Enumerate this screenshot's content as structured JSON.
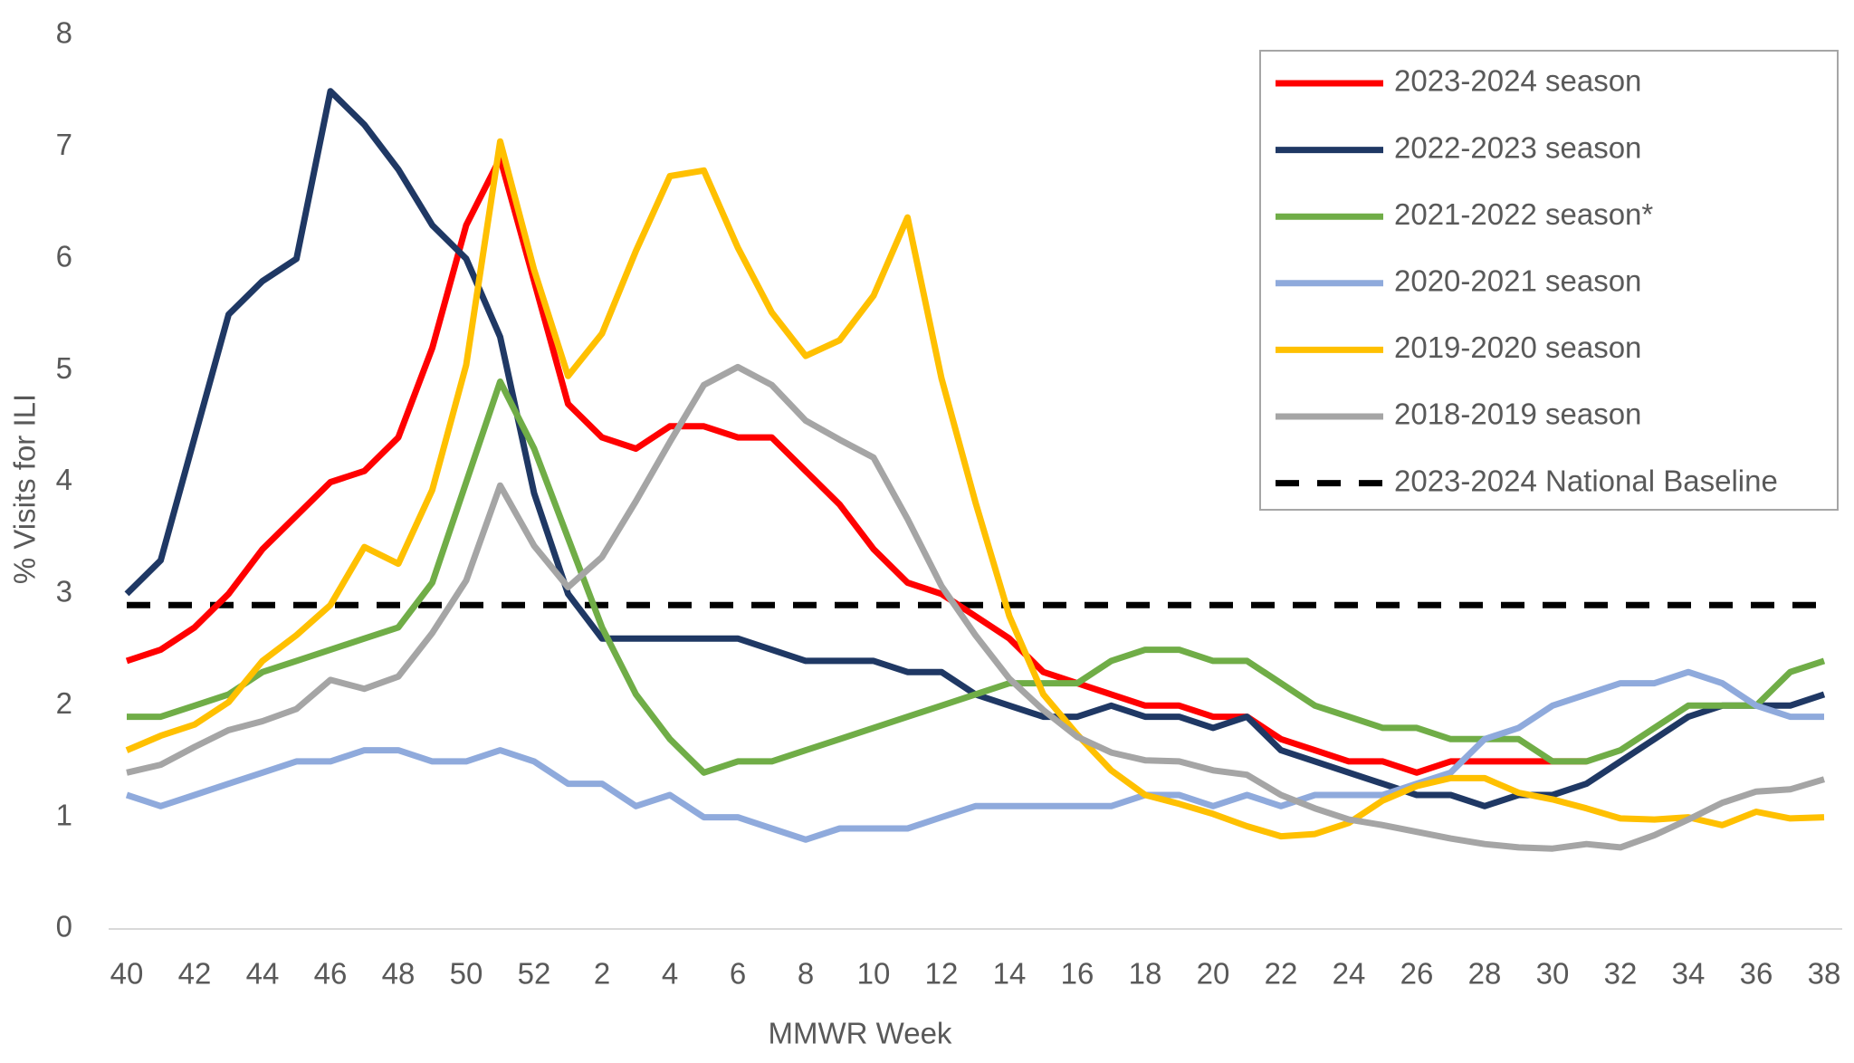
{
  "chart_data": {
    "type": "line",
    "x_label": "MMWR Week",
    "y_label": "% Visits for ILI",
    "categories": [
      40,
      null,
      42,
      null,
      44,
      null,
      46,
      null,
      48,
      null,
      50,
      null,
      52,
      null,
      2,
      null,
      4,
      null,
      6,
      null,
      8,
      null,
      10,
      null,
      12,
      null,
      14,
      null,
      16,
      null,
      18,
      null,
      20,
      null,
      22,
      null,
      24,
      null,
      26,
      null,
      28,
      null,
      30,
      null,
      32,
      null,
      34,
      null,
      36,
      null,
      38
    ],
    "ylim": [
      0,
      8
    ],
    "yticks": [
      0,
      1,
      2,
      3,
      4,
      5,
      6,
      7,
      8
    ],
    "grid": false,
    "legend": "upper right",
    "series": [
      {
        "name": "2023-2024 season",
        "color": "#ff0000",
        "values": [
          2.4,
          2.5,
          2.7,
          3.0,
          3.4,
          3.7,
          4.0,
          4.1,
          4.4,
          5.2,
          6.3,
          6.9,
          5.8,
          4.7,
          4.4,
          4.3,
          4.5,
          4.5,
          4.4,
          4.4,
          4.1,
          3.8,
          3.4,
          3.1,
          3.0,
          2.8,
          2.6,
          2.3,
          2.2,
          2.1,
          2.0,
          2.0,
          1.9,
          1.9,
          1.7,
          1.6,
          1.5,
          1.5,
          1.4,
          1.5,
          1.5,
          1.5,
          1.5,
          1.5,
          null,
          null,
          null,
          null,
          null,
          null,
          null
        ]
      },
      {
        "name": "2022-2023 season",
        "color": "#1f3864",
        "values": [
          3.0,
          3.3,
          4.4,
          5.5,
          5.8,
          6.0,
          7.5,
          7.2,
          6.8,
          6.3,
          6.0,
          5.3,
          3.9,
          3.0,
          2.6,
          2.6,
          2.6,
          2.6,
          2.6,
          2.5,
          2.4,
          2.4,
          2.4,
          2.3,
          2.3,
          2.1,
          2.0,
          1.9,
          1.9,
          2.0,
          1.9,
          1.9,
          1.8,
          1.9,
          1.6,
          1.5,
          1.4,
          1.3,
          1.2,
          1.2,
          1.1,
          1.2,
          1.2,
          1.3,
          1.5,
          1.7,
          1.9,
          2.0,
          2.0,
          2.0,
          2.1
        ]
      },
      {
        "name": "2021-2022 season*",
        "color": "#70ad47",
        "values": [
          1.9,
          1.9,
          2.0,
          2.1,
          2.3,
          2.4,
          2.5,
          2.6,
          2.7,
          3.1,
          4.0,
          4.9,
          4.3,
          3.5,
          2.7,
          2.1,
          1.7,
          1.4,
          1.5,
          1.5,
          1.6,
          1.7,
          1.8,
          1.9,
          2.0,
          2.1,
          2.2,
          2.2,
          2.2,
          2.4,
          2.5,
          2.5,
          2.4,
          2.4,
          2.2,
          2.0,
          1.9,
          1.8,
          1.8,
          1.7,
          1.7,
          1.7,
          1.5,
          1.5,
          1.6,
          1.8,
          2.0,
          2.0,
          2.0,
          2.3,
          2.4
        ]
      },
      {
        "name": "2020-2021 season",
        "color": "#8faadc",
        "values": [
          1.2,
          1.1,
          1.2,
          1.3,
          1.4,
          1.5,
          1.5,
          1.6,
          1.6,
          1.5,
          1.5,
          1.6,
          1.5,
          1.3,
          1.3,
          1.1,
          1.2,
          1.0,
          1.0,
          0.9,
          0.8,
          0.9,
          0.9,
          0.9,
          1.0,
          1.1,
          1.1,
          1.1,
          1.1,
          1.1,
          1.2,
          1.2,
          1.1,
          1.2,
          1.1,
          1.2,
          1.2,
          1.2,
          1.3,
          1.4,
          1.7,
          1.8,
          2.0,
          2.1,
          2.2,
          2.2,
          2.3,
          2.2,
          2.0,
          1.9,
          1.9
        ]
      },
      {
        "name": "2019-2020 season",
        "color": "#ffc000",
        "values": [
          1.6,
          1.73,
          1.83,
          2.03,
          2.4,
          2.63,
          2.9,
          3.42,
          3.27,
          3.93,
          5.05,
          7.05,
          5.9,
          4.95,
          5.33,
          6.07,
          6.74,
          6.79,
          6.1,
          5.52,
          5.13,
          5.27,
          5.67,
          6.37,
          4.93,
          3.82,
          2.8,
          2.1,
          1.74,
          1.42,
          1.2,
          1.12,
          1.03,
          0.92,
          0.83,
          0.85,
          0.95,
          1.15,
          1.28,
          1.35,
          1.35,
          1.22,
          1.16,
          1.08,
          0.99,
          0.98,
          1.0,
          0.93,
          1.05,
          0.99,
          1.0
        ]
      },
      {
        "name": "2018-2019 season",
        "color": "#a5a5a5",
        "values": [
          1.4,
          1.47,
          1.63,
          1.78,
          1.86,
          1.97,
          2.23,
          2.15,
          2.26,
          2.65,
          3.12,
          3.97,
          3.43,
          3.06,
          3.33,
          3.83,
          4.36,
          4.87,
          5.03,
          4.87,
          4.55,
          4.38,
          4.22,
          3.67,
          3.07,
          2.63,
          2.24,
          1.96,
          1.72,
          1.58,
          1.51,
          1.5,
          1.42,
          1.38,
          1.2,
          1.08,
          0.98,
          0.93,
          0.87,
          0.81,
          0.76,
          0.73,
          0.72,
          0.76,
          0.73,
          0.84,
          0.98,
          1.13,
          1.23,
          1.25,
          1.34
        ]
      }
    ],
    "baseline": {
      "name": "2023-2024 National Baseline",
      "color": "#000000",
      "value": 2.9
    }
  }
}
